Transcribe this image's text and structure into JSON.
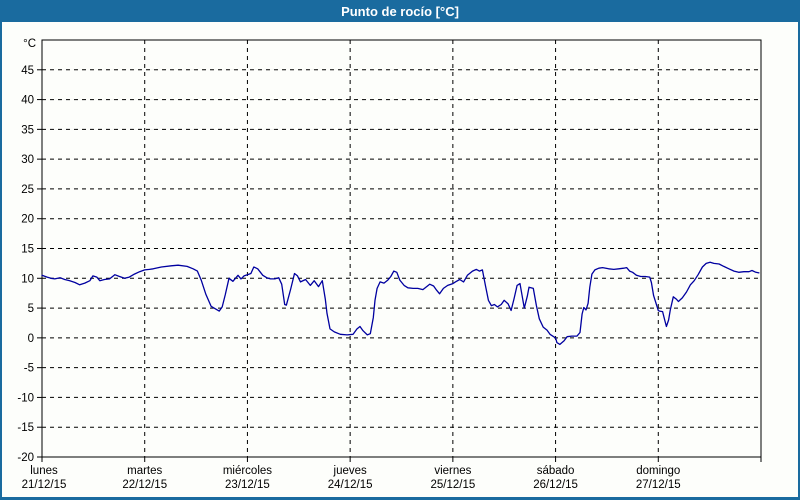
{
  "window": {
    "title": "Punto de rocío [°C]"
  },
  "colors": {
    "title_bar": "#1a6b9f",
    "title_text": "#ffffff",
    "window_border": "#1a6b9f",
    "plot_background": "#fdfefb",
    "grid": "#000000",
    "axis_text": "#000000",
    "line": "#0000a0"
  },
  "chart_data": {
    "type": "line",
    "title": "Punto de rocío [°C]",
    "ylabel": "°C",
    "unit_label": "°C",
    "ylim": [
      -20,
      50
    ],
    "y_ticks": [
      -20,
      -15,
      -10,
      -5,
      0,
      5,
      10,
      15,
      20,
      25,
      30,
      35,
      40,
      45
    ],
    "x_hours_total": 168,
    "grid": "dashed",
    "legend_position": "none",
    "x_days": [
      {
        "day": "lunes",
        "date": "21/12/15"
      },
      {
        "day": "martes",
        "date": "22/12/15"
      },
      {
        "day": "miércoles",
        "date": "23/12/15"
      },
      {
        "day": "jueves",
        "date": "24/12/15"
      },
      {
        "day": "viernes",
        "date": "25/12/15"
      },
      {
        "day": "sábado",
        "date": "26/12/15"
      },
      {
        "day": "domingo",
        "date": "27/12/15"
      }
    ],
    "series": [
      {
        "name": "Punto de rocío",
        "color": "#0000a0",
        "points": [
          [
            0,
            10.5
          ],
          [
            1.2,
            10.2
          ],
          [
            2.1,
            10.0
          ],
          [
            3.0,
            9.9
          ],
          [
            4.2,
            10.1
          ],
          [
            5.3,
            9.8
          ],
          [
            6.5,
            9.6
          ],
          [
            7.7,
            9.3
          ],
          [
            8.8,
            8.9
          ],
          [
            10.0,
            9.2
          ],
          [
            11.2,
            9.6
          ],
          [
            11.9,
            10.4
          ],
          [
            12.8,
            10.2
          ],
          [
            13.5,
            9.6
          ],
          [
            14.6,
            9.8
          ],
          [
            15.8,
            9.9
          ],
          [
            17.0,
            10.6
          ],
          [
            18.1,
            10.3
          ],
          [
            19.3,
            10.0
          ],
          [
            20.4,
            10.2
          ],
          [
            21.6,
            10.7
          ],
          [
            22.8,
            11.1
          ],
          [
            24.0,
            11.4
          ],
          [
            25.1,
            11.5
          ],
          [
            26.0,
            11.6
          ],
          [
            27.9,
            11.9
          ],
          [
            30.2,
            12.1
          ],
          [
            31.8,
            12.2
          ],
          [
            33.9,
            12.0
          ],
          [
            35.3,
            11.6
          ],
          [
            36.3,
            11.2
          ],
          [
            37.2,
            9.7
          ],
          [
            38.3,
            7.3
          ],
          [
            39.5,
            5.3
          ],
          [
            40.7,
            4.8
          ],
          [
            41.4,
            4.5
          ],
          [
            42.1,
            5.2
          ],
          [
            42.8,
            7.2
          ],
          [
            43.7,
            10.0
          ],
          [
            44.6,
            9.5
          ],
          [
            45.8,
            10.5
          ],
          [
            46.5,
            9.9
          ],
          [
            47.2,
            10.4
          ],
          [
            48.0,
            10.6
          ],
          [
            48.8,
            10.8
          ],
          [
            49.5,
            11.9
          ],
          [
            50.4,
            11.6
          ],
          [
            51.6,
            10.5
          ],
          [
            52.5,
            10.1
          ],
          [
            53.4,
            9.9
          ],
          [
            54.4,
            9.9
          ],
          [
            55.3,
            10.1
          ],
          [
            56.0,
            9.0
          ],
          [
            56.7,
            5.6
          ],
          [
            57.1,
            5.5
          ],
          [
            58.1,
            8.2
          ],
          [
            59.0,
            10.8
          ],
          [
            59.7,
            10.4
          ],
          [
            60.4,
            9.4
          ],
          [
            61.6,
            9.8
          ],
          [
            62.7,
            8.8
          ],
          [
            63.6,
            9.6
          ],
          [
            64.6,
            8.6
          ],
          [
            65.5,
            9.6
          ],
          [
            66.2,
            6.5
          ],
          [
            66.6,
            4.1
          ],
          [
            67.3,
            1.5
          ],
          [
            68.3,
            1.0
          ],
          [
            69.7,
            0.6
          ],
          [
            71.3,
            0.5
          ],
          [
            72.7,
            0.6
          ],
          [
            73.6,
            1.5
          ],
          [
            74.3,
            1.9
          ],
          [
            75.0,
            1.2
          ],
          [
            76.0,
            0.5
          ],
          [
            76.7,
            0.7
          ],
          [
            77.4,
            3.4
          ],
          [
            77.8,
            6.3
          ],
          [
            78.3,
            8.3
          ],
          [
            79.0,
            9.4
          ],
          [
            79.9,
            9.2
          ],
          [
            80.8,
            9.7
          ],
          [
            81.5,
            10.3
          ],
          [
            82.2,
            11.2
          ],
          [
            82.9,
            11.0
          ],
          [
            83.6,
            9.7
          ],
          [
            84.6,
            8.8
          ],
          [
            85.5,
            8.4
          ],
          [
            86.7,
            8.3
          ],
          [
            87.8,
            8.3
          ],
          [
            89.0,
            8.1
          ],
          [
            90.6,
            9.0
          ],
          [
            91.5,
            8.7
          ],
          [
            92.2,
            8.0
          ],
          [
            92.9,
            7.4
          ],
          [
            93.8,
            8.3
          ],
          [
            94.8,
            8.8
          ],
          [
            96.0,
            9.1
          ],
          [
            96.6,
            9.4
          ],
          [
            97.6,
            9.8
          ],
          [
            98.5,
            9.4
          ],
          [
            99.4,
            10.5
          ],
          [
            100.6,
            11.2
          ],
          [
            101.5,
            11.5
          ],
          [
            102.2,
            11.2
          ],
          [
            102.9,
            11.4
          ],
          [
            103.6,
            8.8
          ],
          [
            104.3,
            6.3
          ],
          [
            105.0,
            5.4
          ],
          [
            105.7,
            5.6
          ],
          [
            106.4,
            5.2
          ],
          [
            107.3,
            5.6
          ],
          [
            108.0,
            6.3
          ],
          [
            108.9,
            5.7
          ],
          [
            109.6,
            4.6
          ],
          [
            110.3,
            6.6
          ],
          [
            111.0,
            8.8
          ],
          [
            111.7,
            9.1
          ],
          [
            112.2,
            7.0
          ],
          [
            112.7,
            5.0
          ],
          [
            113.4,
            7.0
          ],
          [
            113.8,
            8.5
          ],
          [
            114.8,
            8.3
          ],
          [
            115.5,
            5.5
          ],
          [
            116.2,
            3.2
          ],
          [
            117.1,
            1.8
          ],
          [
            118.0,
            1.3
          ],
          [
            118.7,
            0.6
          ],
          [
            120.0,
            0.0
          ],
          [
            120.3,
            -0.8
          ],
          [
            121.0,
            -1.1
          ],
          [
            122.0,
            -0.5
          ],
          [
            122.7,
            0.2
          ],
          [
            123.8,
            0.3
          ],
          [
            125.0,
            0.3
          ],
          [
            125.7,
            0.9
          ],
          [
            126.2,
            4.0
          ],
          [
            126.6,
            5.1
          ],
          [
            127.1,
            4.7
          ],
          [
            127.6,
            5.8
          ],
          [
            128.0,
            8.5
          ],
          [
            128.5,
            10.7
          ],
          [
            129.2,
            11.4
          ],
          [
            130.1,
            11.7
          ],
          [
            131.0,
            11.8
          ],
          [
            132.4,
            11.6
          ],
          [
            133.6,
            11.5
          ],
          [
            134.8,
            11.6
          ],
          [
            135.9,
            11.7
          ],
          [
            136.6,
            11.8
          ],
          [
            137.3,
            11.2
          ],
          [
            138.0,
            11.0
          ],
          [
            138.9,
            10.5
          ],
          [
            139.9,
            10.3
          ],
          [
            141.0,
            10.3
          ],
          [
            142.0,
            10.2
          ],
          [
            142.4,
            9.3
          ],
          [
            142.9,
            7.1
          ],
          [
            144.0,
            4.6
          ],
          [
            144.3,
            4.5
          ],
          [
            145.0,
            4.4
          ],
          [
            145.5,
            3.0
          ],
          [
            145.9,
            1.9
          ],
          [
            146.4,
            3.0
          ],
          [
            146.8,
            4.7
          ],
          [
            147.5,
            6.9
          ],
          [
            148.2,
            6.5
          ],
          [
            148.7,
            6.1
          ],
          [
            149.6,
            6.7
          ],
          [
            150.6,
            7.7
          ],
          [
            151.5,
            8.9
          ],
          [
            152.4,
            9.6
          ],
          [
            153.3,
            10.6
          ],
          [
            154.3,
            11.9
          ],
          [
            155.2,
            12.5
          ],
          [
            156.1,
            12.7
          ],
          [
            157.0,
            12.5
          ],
          [
            158.2,
            12.4
          ],
          [
            159.3,
            12.0
          ],
          [
            160.5,
            11.6
          ],
          [
            161.7,
            11.2
          ],
          [
            162.8,
            11.0
          ],
          [
            164.0,
            11.1
          ],
          [
            165.2,
            11.1
          ],
          [
            165.9,
            11.3
          ],
          [
            166.8,
            11.0
          ],
          [
            167.5,
            10.9
          ]
        ]
      }
    ]
  }
}
